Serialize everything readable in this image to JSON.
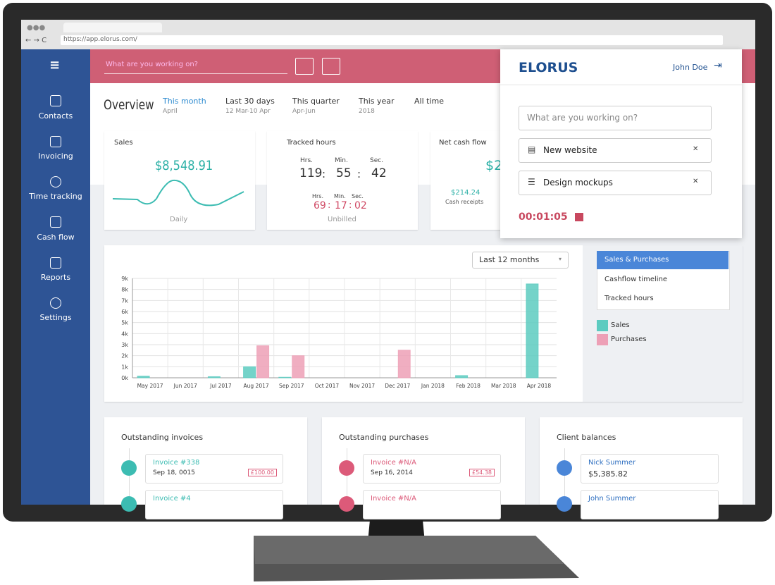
{
  "browser": {
    "url": "https://app.elorus.com/"
  },
  "sidebar": {
    "items": [
      "Contacts",
      "Invoicing",
      "Time tracking",
      "Cash flow",
      "Reports",
      "Settings"
    ]
  },
  "topbar": {
    "placeholder": "What are you working on?"
  },
  "overview": {
    "title": "Overview",
    "periods": [
      {
        "label": "This month",
        "sub": "April"
      },
      {
        "label": "Last 30 days",
        "sub": "12 Mar-10 Apr"
      },
      {
        "label": "This quarter",
        "sub": "Apr-Jun"
      },
      {
        "label": "This year",
        "sub": "2018"
      },
      {
        "label": "All time"
      }
    ]
  },
  "cards": {
    "sales": {
      "title": "Sales",
      "amount": "$8,548.91",
      "footer": "Daily"
    },
    "tracked": {
      "title": "Tracked hours",
      "units": [
        "Hrs.",
        "Min.",
        "Sec."
      ],
      "separator": ":",
      "total": [
        "119",
        "55",
        "42"
      ],
      "unbilled": [
        "69",
        "17",
        "02"
      ],
      "footer": "Unbilled"
    },
    "cash": {
      "title": "Net cash flow",
      "amount": "$2",
      "receipts": "$214.24",
      "receipts_label": "Cash receipts"
    }
  },
  "popup": {
    "logo": "ELORUS",
    "user": "John Doe",
    "placeholder": "What are you working on?",
    "tasks": [
      "New website",
      "Design mockups"
    ],
    "timer": "00:01:05"
  },
  "chart_panel": {
    "range": "Last 12 months",
    "tabs": [
      "Sales & Purchases",
      "Cashflow timeline",
      "Tracked hours"
    ]
  },
  "chart_data": {
    "type": "bar",
    "categories": [
      "May 2017",
      "Jun 2017",
      "Jul 2017",
      "Aug 2017",
      "Sep 2017",
      "Oct 2017",
      "Nov 2017",
      "Dec 2017",
      "Jan 2018",
      "Feb 2018",
      "Mar 2018",
      "Apr 2018"
    ],
    "series": [
      {
        "name": "Sales",
        "color": "#5ccbc0",
        "values": [
          150,
          0,
          100,
          1000,
          50,
          0,
          0,
          0,
          0,
          200,
          0,
          8500
        ]
      },
      {
        "name": "Purchases",
        "color": "#eda0b6",
        "values": [
          0,
          0,
          0,
          2900,
          2000,
          0,
          0,
          2500,
          0,
          0,
          0,
          0
        ]
      }
    ],
    "ylim": [
      0,
      9000
    ],
    "yticks": [
      {
        "value": 0,
        "label": "0k"
      },
      {
        "value": 1000,
        "label": "1k"
      },
      {
        "value": 2000,
        "label": "2k"
      },
      {
        "value": 3000,
        "label": "3k"
      },
      {
        "value": 4000,
        "label": "4k"
      },
      {
        "value": 5000,
        "label": "5k"
      },
      {
        "value": 6000,
        "label": "6k"
      },
      {
        "value": 7000,
        "label": "7k"
      },
      {
        "value": 8000,
        "label": "8k"
      },
      {
        "value": 9000,
        "label": "9k"
      }
    ],
    "grid": true
  },
  "panels": [
    {
      "title": "Outstanding invoices",
      "items": [
        {
          "name": "Invoice #338",
          "date": "Sep 18, 0015",
          "amount": "£100.00"
        },
        {
          "name": "Invoice #4"
        }
      ]
    },
    {
      "title": "Outstanding purchases",
      "items": [
        {
          "name": "Invoice #N/A",
          "date": "Sep 16, 2014",
          "amount": "£54.38"
        },
        {
          "name": "Invoice #N/A"
        }
      ]
    },
    {
      "title": "Client balances",
      "items": [
        {
          "name": "Nick Summer",
          "date": "$5,385.82"
        },
        {
          "name": "John Summer"
        }
      ]
    }
  ]
}
